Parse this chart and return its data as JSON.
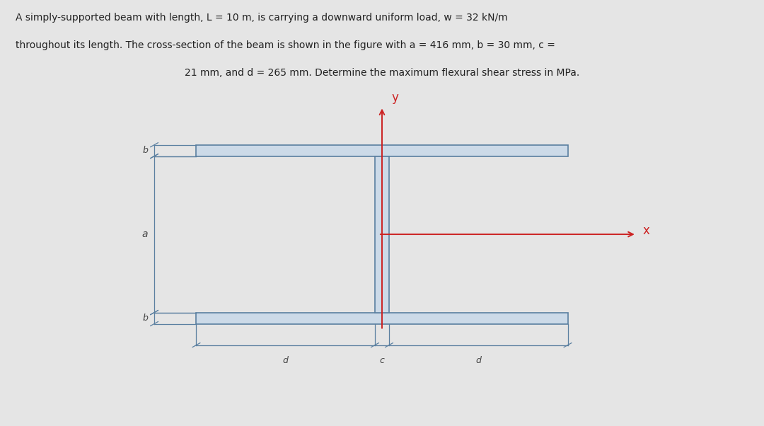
{
  "background_color": "#e5e5e5",
  "flange_fill": "#ccdae8",
  "flange_edge": "#5a7fa0",
  "web_fill": "#ccdae8",
  "web_edge": "#5a7fa0",
  "dim_line_color": "#5a7fa0",
  "axis_color": "#cc2222",
  "text_color": "#222222",
  "dim_text_color": "#444444",
  "a_val": 416,
  "b_val": 30,
  "c_val": 21,
  "d_val": 265,
  "fig_width": 10.8,
  "fig_height": 6.02,
  "problem_line1": "A simply-supported beam with length, L = 10 m, is carrying a downward uniform load, w = 32 kN/m",
  "problem_line2": "throughout its length. The cross-section of the beam is shown in the figure with a = 416 mm, b = 30 mm, c =",
  "problem_line3": "21 mm, and d = 265 mm. Determine the maximum flexural shear stress in MPa."
}
